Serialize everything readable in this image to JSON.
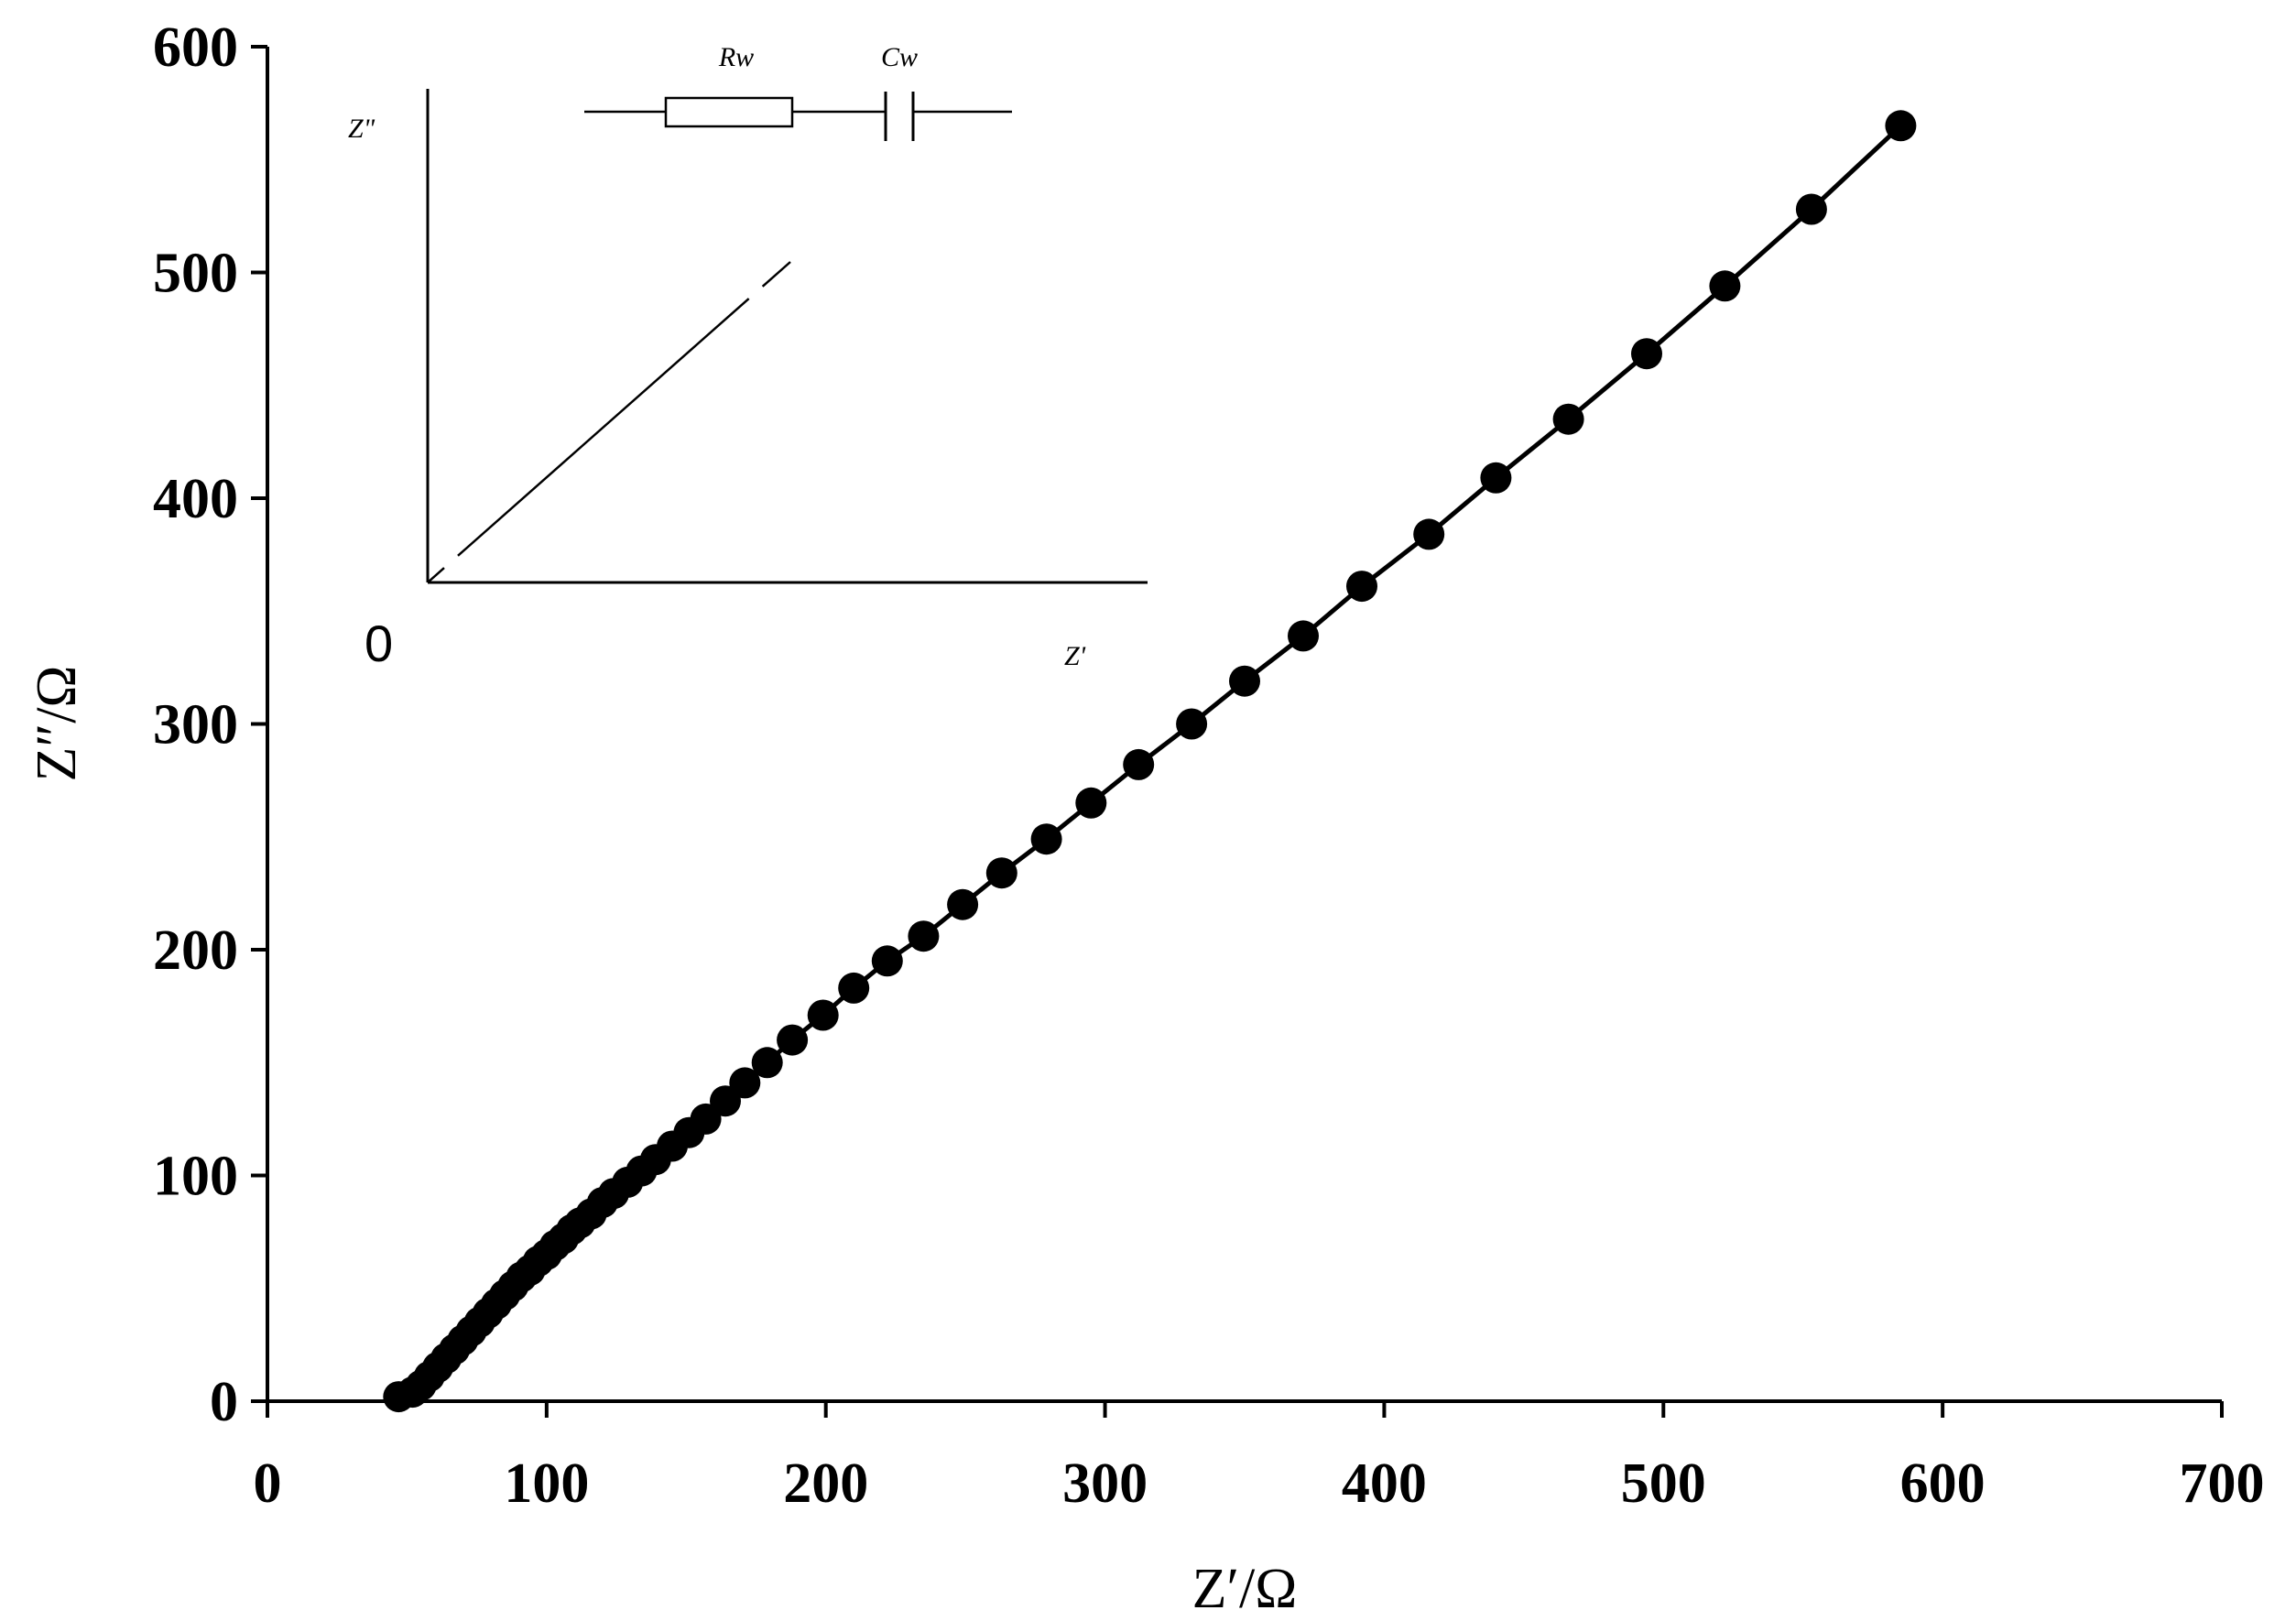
{
  "chart_data": {
    "type": "scatter",
    "xlabel": "Z′/Ω",
    "ylabel": "Z″/Ω",
    "xlim": [
      0,
      700
    ],
    "ylim": [
      0,
      600
    ],
    "x_ticks": [
      "0",
      "100",
      "200",
      "300",
      "400",
      "500",
      "600",
      "700"
    ],
    "y_ticks": [
      "0",
      "100",
      "200",
      "300",
      "400",
      "500",
      "600"
    ],
    "grid": false,
    "legend": "none",
    "marker": "filled-circle",
    "line": "solid",
    "color": "#000000",
    "series": [
      {
        "x": [
          47,
          52,
          55,
          58,
          61,
          64,
          67,
          70,
          73,
          76,
          79,
          82,
          85,
          88,
          91,
          94,
          97,
          100,
          103,
          106,
          109,
          112,
          116,
          120,
          124,
          129,
          134,
          139,
          145,
          151,
          157,
          164,
          171,
          179,
          188,
          199,
          210,
          222,
          235,
          249,
          263,
          279,
          295,
          312,
          331,
          350,
          371,
          392,
          416,
          440,
          466,
          494,
          522,
          553,
          585
        ],
        "y": [
          2,
          4,
          7,
          11,
          15,
          19,
          23,
          27,
          31,
          35,
          39,
          43,
          47,
          51,
          55,
          58,
          62,
          65,
          69,
          72,
          76,
          79,
          83,
          88,
          92,
          97,
          102,
          107,
          113,
          119,
          125,
          133,
          141,
          150,
          160,
          171,
          183,
          195,
          206,
          220,
          234,
          249,
          265,
          282,
          300,
          319,
          339,
          361,
          384,
          409,
          435,
          464,
          494,
          528,
          565
        ]
      }
    ],
    "inset": {
      "circuit_labels": [
        "Rw",
        "Cw"
      ],
      "y_axis_label": "Z\"",
      "x_axis_label": "Z'",
      "origin_label": "0"
    }
  }
}
